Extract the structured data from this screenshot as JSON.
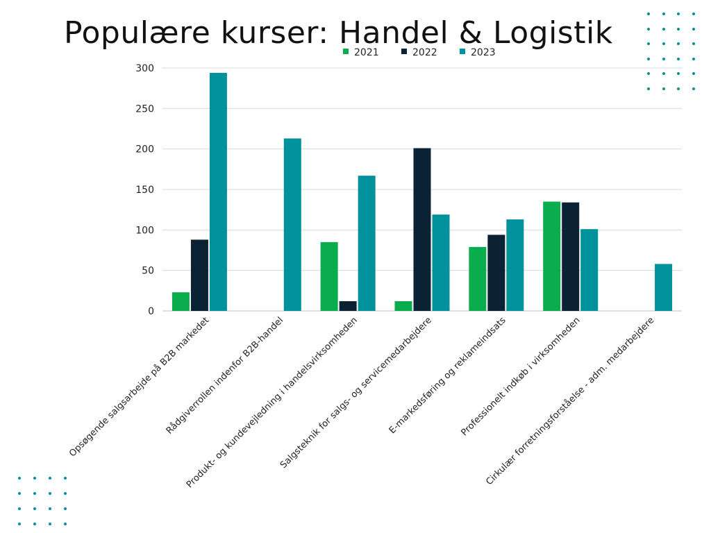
{
  "slide": {
    "title": "Populære kurser: Handel & Logistik"
  },
  "colors": {
    "2021": "#0aad4e",
    "2022": "#0b2235",
    "2023": "#00929a",
    "grid": "#d9d9d9",
    "text": "#222222",
    "dots": "#00929a"
  },
  "chart_data": {
    "type": "bar",
    "title": "",
    "xlabel": "",
    "ylabel": "",
    "ylim": [
      0,
      300
    ],
    "yticks": [
      0,
      50,
      100,
      150,
      200,
      250,
      300
    ],
    "grid": true,
    "legend_position": "top-center",
    "categories": [
      "Opsøgende salgsarbejde på B2B markedet",
      "Rådgiverrollen indenfor B2B-handel",
      "Produkt- og kundevejledning i handelsvirksomheden",
      "Salgsteknik for salgs- og servicemedarbejdere",
      "E-markedsføring og reklameindsats",
      "Professionelt indkøb i virksomheden",
      "Cirkulær forretningsforståelse - adm. medarbejdere"
    ],
    "series": [
      {
        "name": "2021",
        "color": "#0aad4e",
        "values": [
          23,
          0,
          85,
          12,
          79,
          135,
          0
        ]
      },
      {
        "name": "2022",
        "color": "#0b2235",
        "values": [
          88,
          0,
          12,
          201,
          94,
          134,
          0
        ]
      },
      {
        "name": "2023",
        "color": "#00929a",
        "values": [
          294,
          213,
          167,
          119,
          113,
          101,
          58
        ]
      }
    ]
  }
}
